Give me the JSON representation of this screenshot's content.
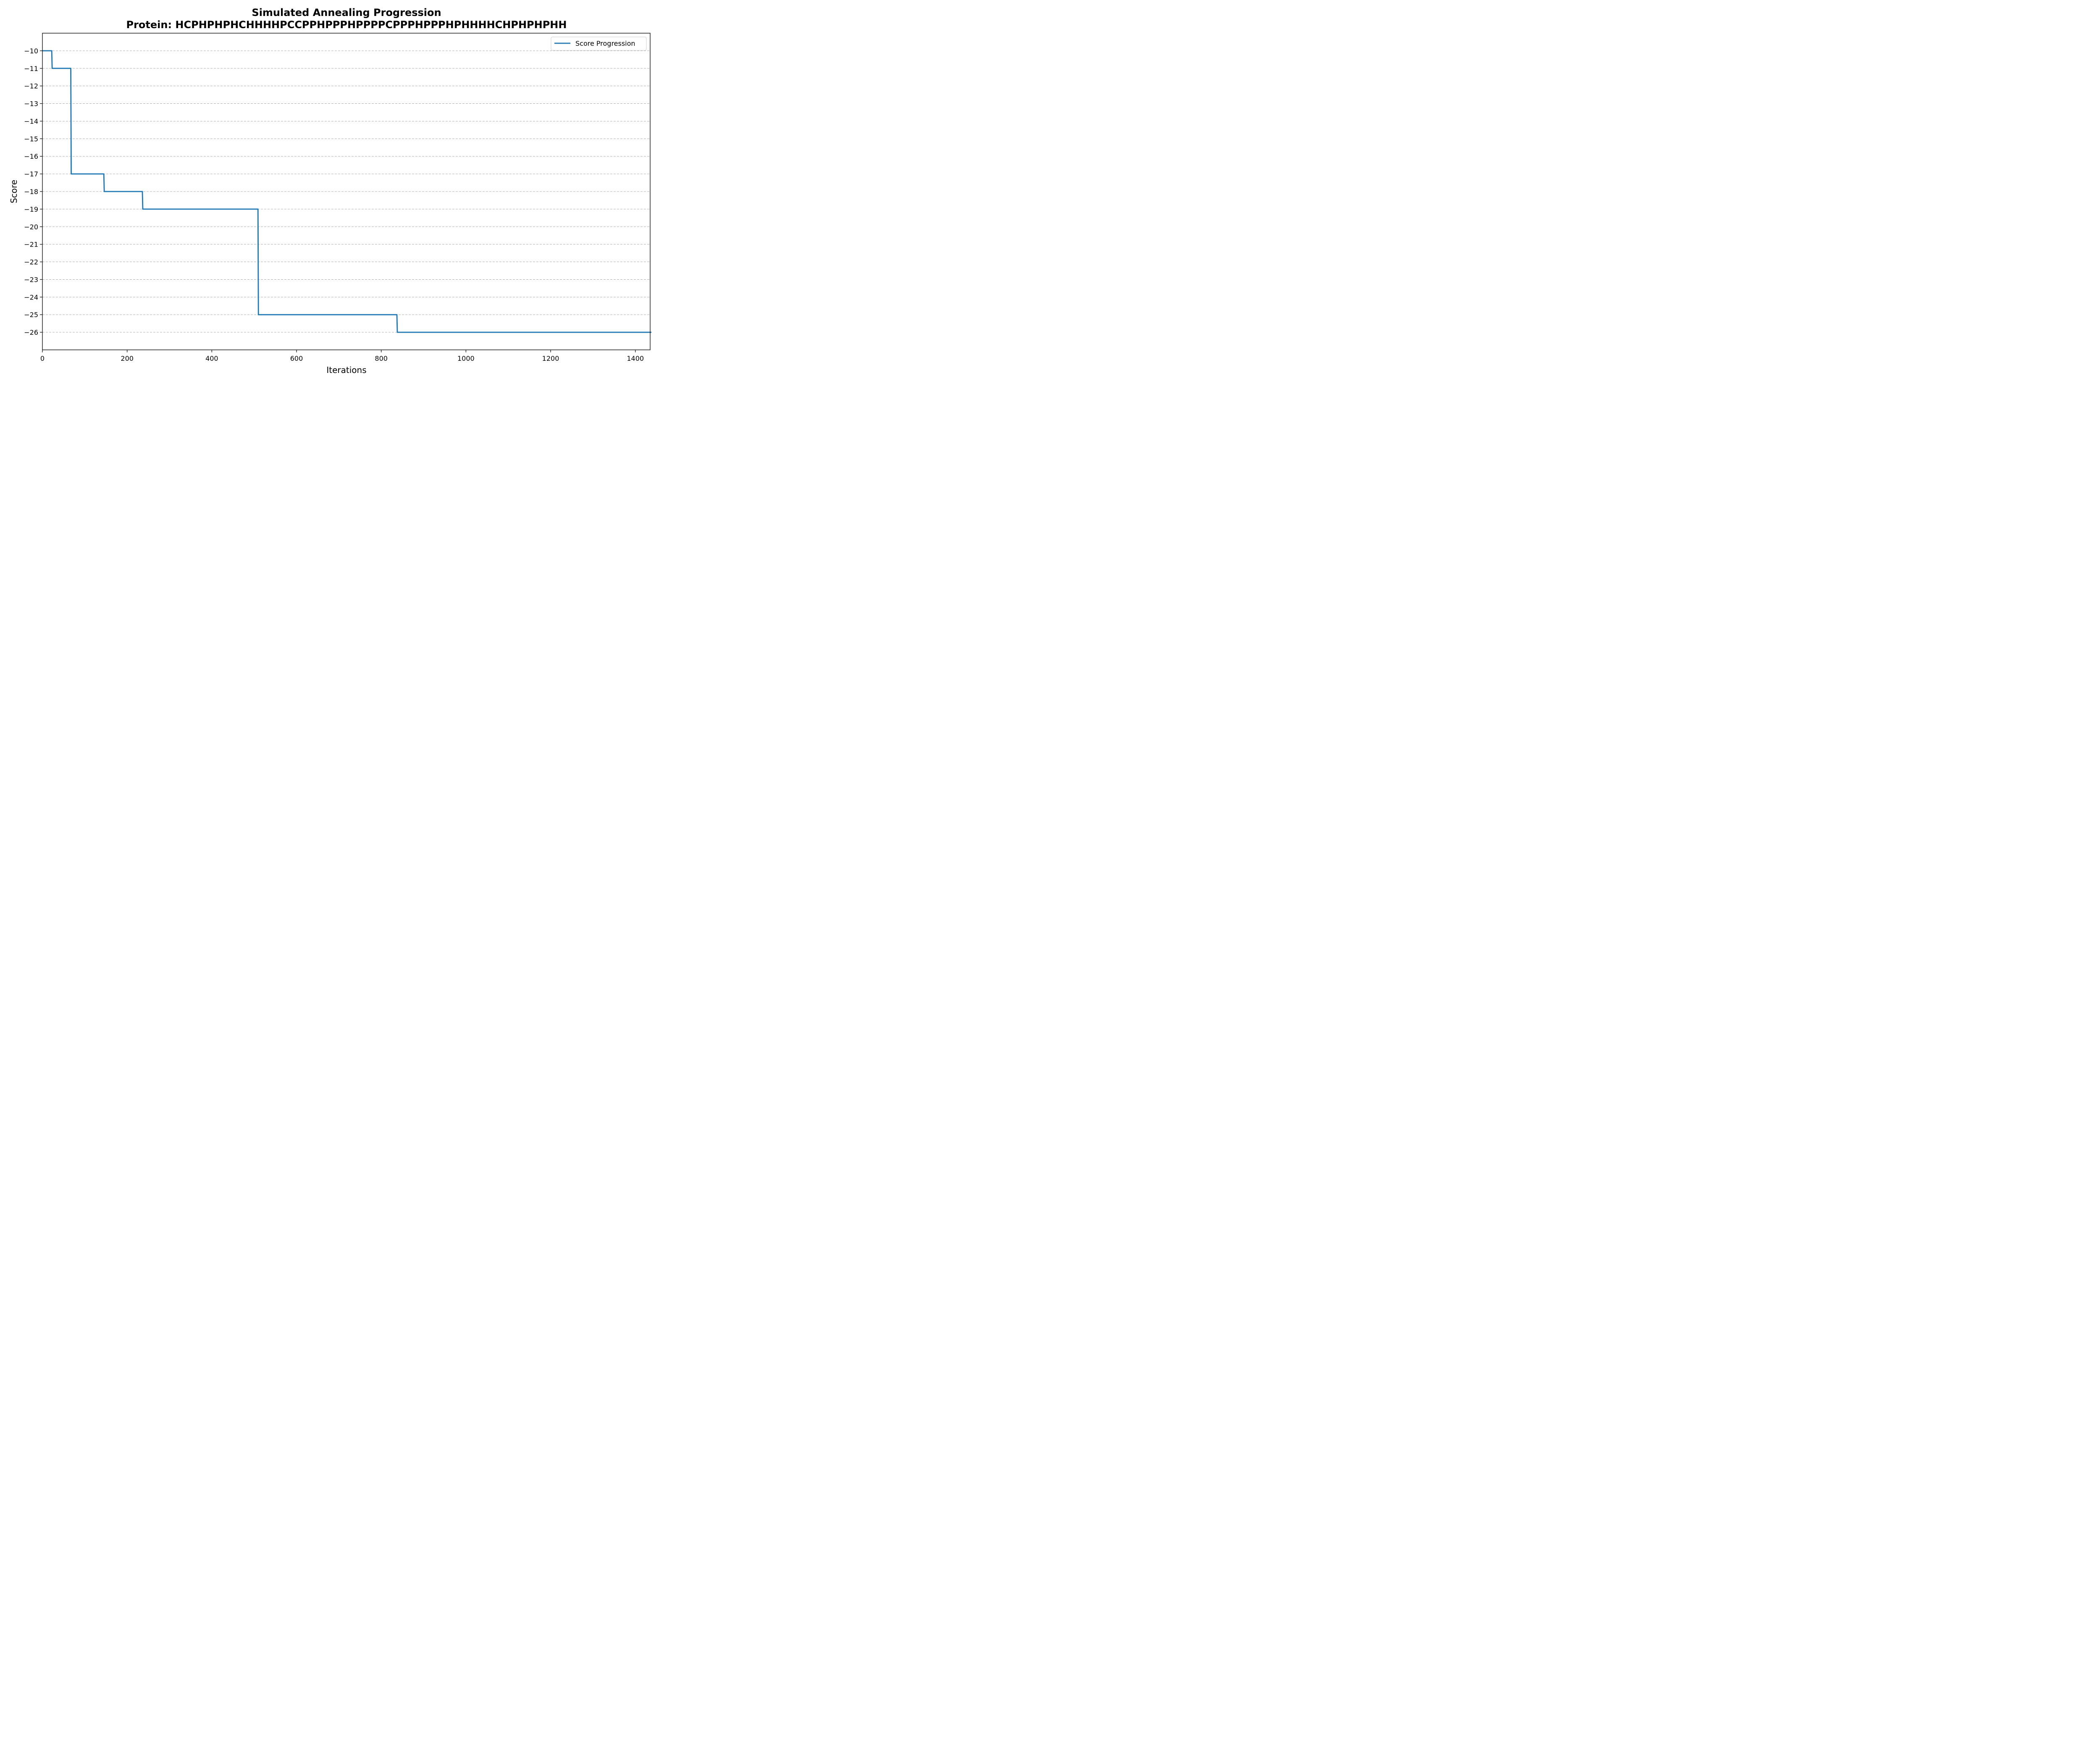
{
  "chart_data": {
    "type": "line",
    "title": "Simulated Annealing Progression",
    "subtitle": "Protein: HCPHPHPHCHHHHPCCPPHPPPHPPPPCPPPHPPPHPHHHHCHPHPHPHH",
    "xlabel": "Iterations",
    "ylabel": "Score",
    "xlim": [
      0,
      1435
    ],
    "ylim": [
      -27,
      -9
    ],
    "x_ticks": [
      0,
      200,
      400,
      600,
      800,
      1000,
      1200,
      1400
    ],
    "y_ticks": [
      -10,
      -11,
      -12,
      -13,
      -14,
      -15,
      -16,
      -17,
      -18,
      -19,
      -20,
      -21,
      -22,
      -23,
      -24,
      -25,
      -26
    ],
    "grid": "horizontal-dashed",
    "legend_position": "top-right",
    "series": [
      {
        "name": "Score Progression",
        "color": "#1f77b4",
        "step": "post",
        "x": [
          0,
          20,
          65,
          143,
          234,
          507,
          835,
          1435
        ],
        "y": [
          -10,
          -11,
          -17,
          -18,
          -19,
          -25,
          -26,
          -26
        ]
      }
    ]
  }
}
